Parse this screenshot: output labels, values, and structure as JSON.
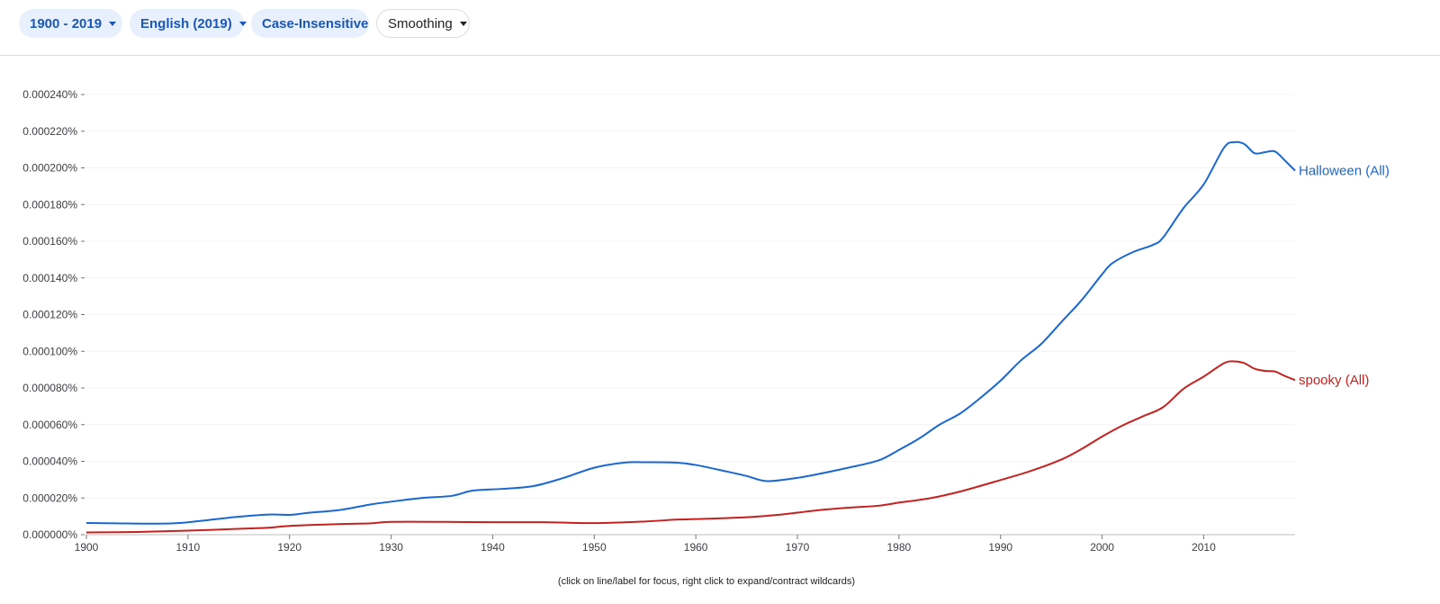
{
  "toolbar": {
    "year_range": "1900 - 2019",
    "corpus": "English (2019)",
    "case": "Case-Insensitive",
    "smoothing": "Smoothing"
  },
  "hint": "(click on line/label for focus, right click to expand/contract wildcards)",
  "colors": {
    "halloween": "#1967d2",
    "spooky": "#c5221f",
    "grid": "#f1f3f4",
    "axis": "#bdbdbd"
  },
  "chart_data": {
    "type": "line",
    "title": "",
    "xlabel": "",
    "ylabel": "",
    "xlim": [
      1900,
      2019
    ],
    "ylim": [
      0,
      0.00024
    ],
    "y_ticks": [
      "0.000000%",
      "0.000020%",
      "0.000040%",
      "0.000060%",
      "0.000080%",
      "0.000100%",
      "0.000120%",
      "0.000140%",
      "0.000160%",
      "0.000180%",
      "0.000200%",
      "0.000220%",
      "0.000240%"
    ],
    "x_ticks": [
      "1900",
      "1910",
      "1920",
      "1930",
      "1940",
      "1950",
      "1960",
      "1970",
      "1980",
      "1990",
      "2000",
      "2010"
    ],
    "grid": true,
    "legend": "line-end labels",
    "series": [
      {
        "name": "Halloween (All)",
        "points": [
          [
            1900,
            6.4e-06
          ],
          [
            1903,
            6.2e-06
          ],
          [
            1906,
            6e-06
          ],
          [
            1909,
            6.3e-06
          ],
          [
            1912,
            8e-06
          ],
          [
            1915,
            9.8e-06
          ],
          [
            1918,
            1.1e-05
          ],
          [
            1920,
            1.08e-05
          ],
          [
            1922,
            1.2e-05
          ],
          [
            1925,
            1.35e-05
          ],
          [
            1928,
            1.65e-05
          ],
          [
            1930,
            1.8e-05
          ],
          [
            1933,
            2e-05
          ],
          [
            1936,
            2.12e-05
          ],
          [
            1938,
            2.4e-05
          ],
          [
            1941,
            2.5e-05
          ],
          [
            1944,
            2.65e-05
          ],
          [
            1947,
            3.1e-05
          ],
          [
            1950,
            3.65e-05
          ],
          [
            1953,
            3.93e-05
          ],
          [
            1955,
            3.95e-05
          ],
          [
            1958,
            3.93e-05
          ],
          [
            1960,
            3.8e-05
          ],
          [
            1963,
            3.45e-05
          ],
          [
            1965,
            3.2e-05
          ],
          [
            1967,
            2.92e-05
          ],
          [
            1970,
            3.1e-05
          ],
          [
            1972,
            3.3e-05
          ],
          [
            1975,
            3.65e-05
          ],
          [
            1978,
            4.05e-05
          ],
          [
            1980,
            4.62e-05
          ],
          [
            1982,
            5.25e-05
          ],
          [
            1984,
            6e-05
          ],
          [
            1986,
            6.6e-05
          ],
          [
            1988,
            7.45e-05
          ],
          [
            1990,
            8.4e-05
          ],
          [
            1992,
            9.5e-05
          ],
          [
            1994,
            0.000104
          ],
          [
            1996,
            0.000116
          ],
          [
            1998,
            0.000128
          ],
          [
            2000,
            0.000142
          ],
          [
            2001,
            0.000148
          ],
          [
            2003,
            0.000154
          ],
          [
            2005,
            0.000158
          ],
          [
            2006,
            0.000162
          ],
          [
            2008,
            0.000178
          ],
          [
            2010,
            0.000191
          ],
          [
            2012,
            0.000211
          ],
          [
            2013,
            0.000214
          ],
          [
            2014,
            0.000213
          ],
          [
            2015,
            0.000208
          ],
          [
            2016,
            0.0002085
          ],
          [
            2017,
            0.000209
          ],
          [
            2018,
            0.000204
          ],
          [
            2019,
            0.0001985
          ]
        ]
      },
      {
        "name": "spooky (All)",
        "points": [
          [
            1900,
            1.2e-06
          ],
          [
            1905,
            1.5e-06
          ],
          [
            1910,
            2.2e-06
          ],
          [
            1915,
            3.2e-06
          ],
          [
            1918,
            3.8e-06
          ],
          [
            1920,
            4.8e-06
          ],
          [
            1925,
            5.8e-06
          ],
          [
            1928,
            6.2e-06
          ],
          [
            1930,
            7e-06
          ],
          [
            1935,
            7e-06
          ],
          [
            1940,
            6.8e-06
          ],
          [
            1945,
            6.8e-06
          ],
          [
            1950,
            6.3e-06
          ],
          [
            1955,
            7.2e-06
          ],
          [
            1958,
            8.2e-06
          ],
          [
            1960,
            8.5e-06
          ],
          [
            1965,
            9.5e-06
          ],
          [
            1968,
            1.08e-05
          ],
          [
            1970,
            1.2e-05
          ],
          [
            1972,
            1.33e-05
          ],
          [
            1975,
            1.47e-05
          ],
          [
            1978,
            1.58e-05
          ],
          [
            1980,
            1.75e-05
          ],
          [
            1983,
            1.98e-05
          ],
          [
            1986,
            2.35e-05
          ],
          [
            1990,
            2.98e-05
          ],
          [
            1993,
            3.48e-05
          ],
          [
            1996,
            4.1e-05
          ],
          [
            1998,
            4.68e-05
          ],
          [
            2000,
            5.35e-05
          ],
          [
            2002,
            5.95e-05
          ],
          [
            2004,
            6.45e-05
          ],
          [
            2006,
            6.95e-05
          ],
          [
            2008,
            7.95e-05
          ],
          [
            2010,
            8.62e-05
          ],
          [
            2012,
            9.35e-05
          ],
          [
            2013,
            9.45e-05
          ],
          [
            2014,
            9.35e-05
          ],
          [
            2015,
            9.05e-05
          ],
          [
            2016,
            8.93e-05
          ],
          [
            2017,
            8.9e-05
          ],
          [
            2018,
            8.65e-05
          ],
          [
            2019,
            8.43e-05
          ]
        ]
      }
    ]
  }
}
